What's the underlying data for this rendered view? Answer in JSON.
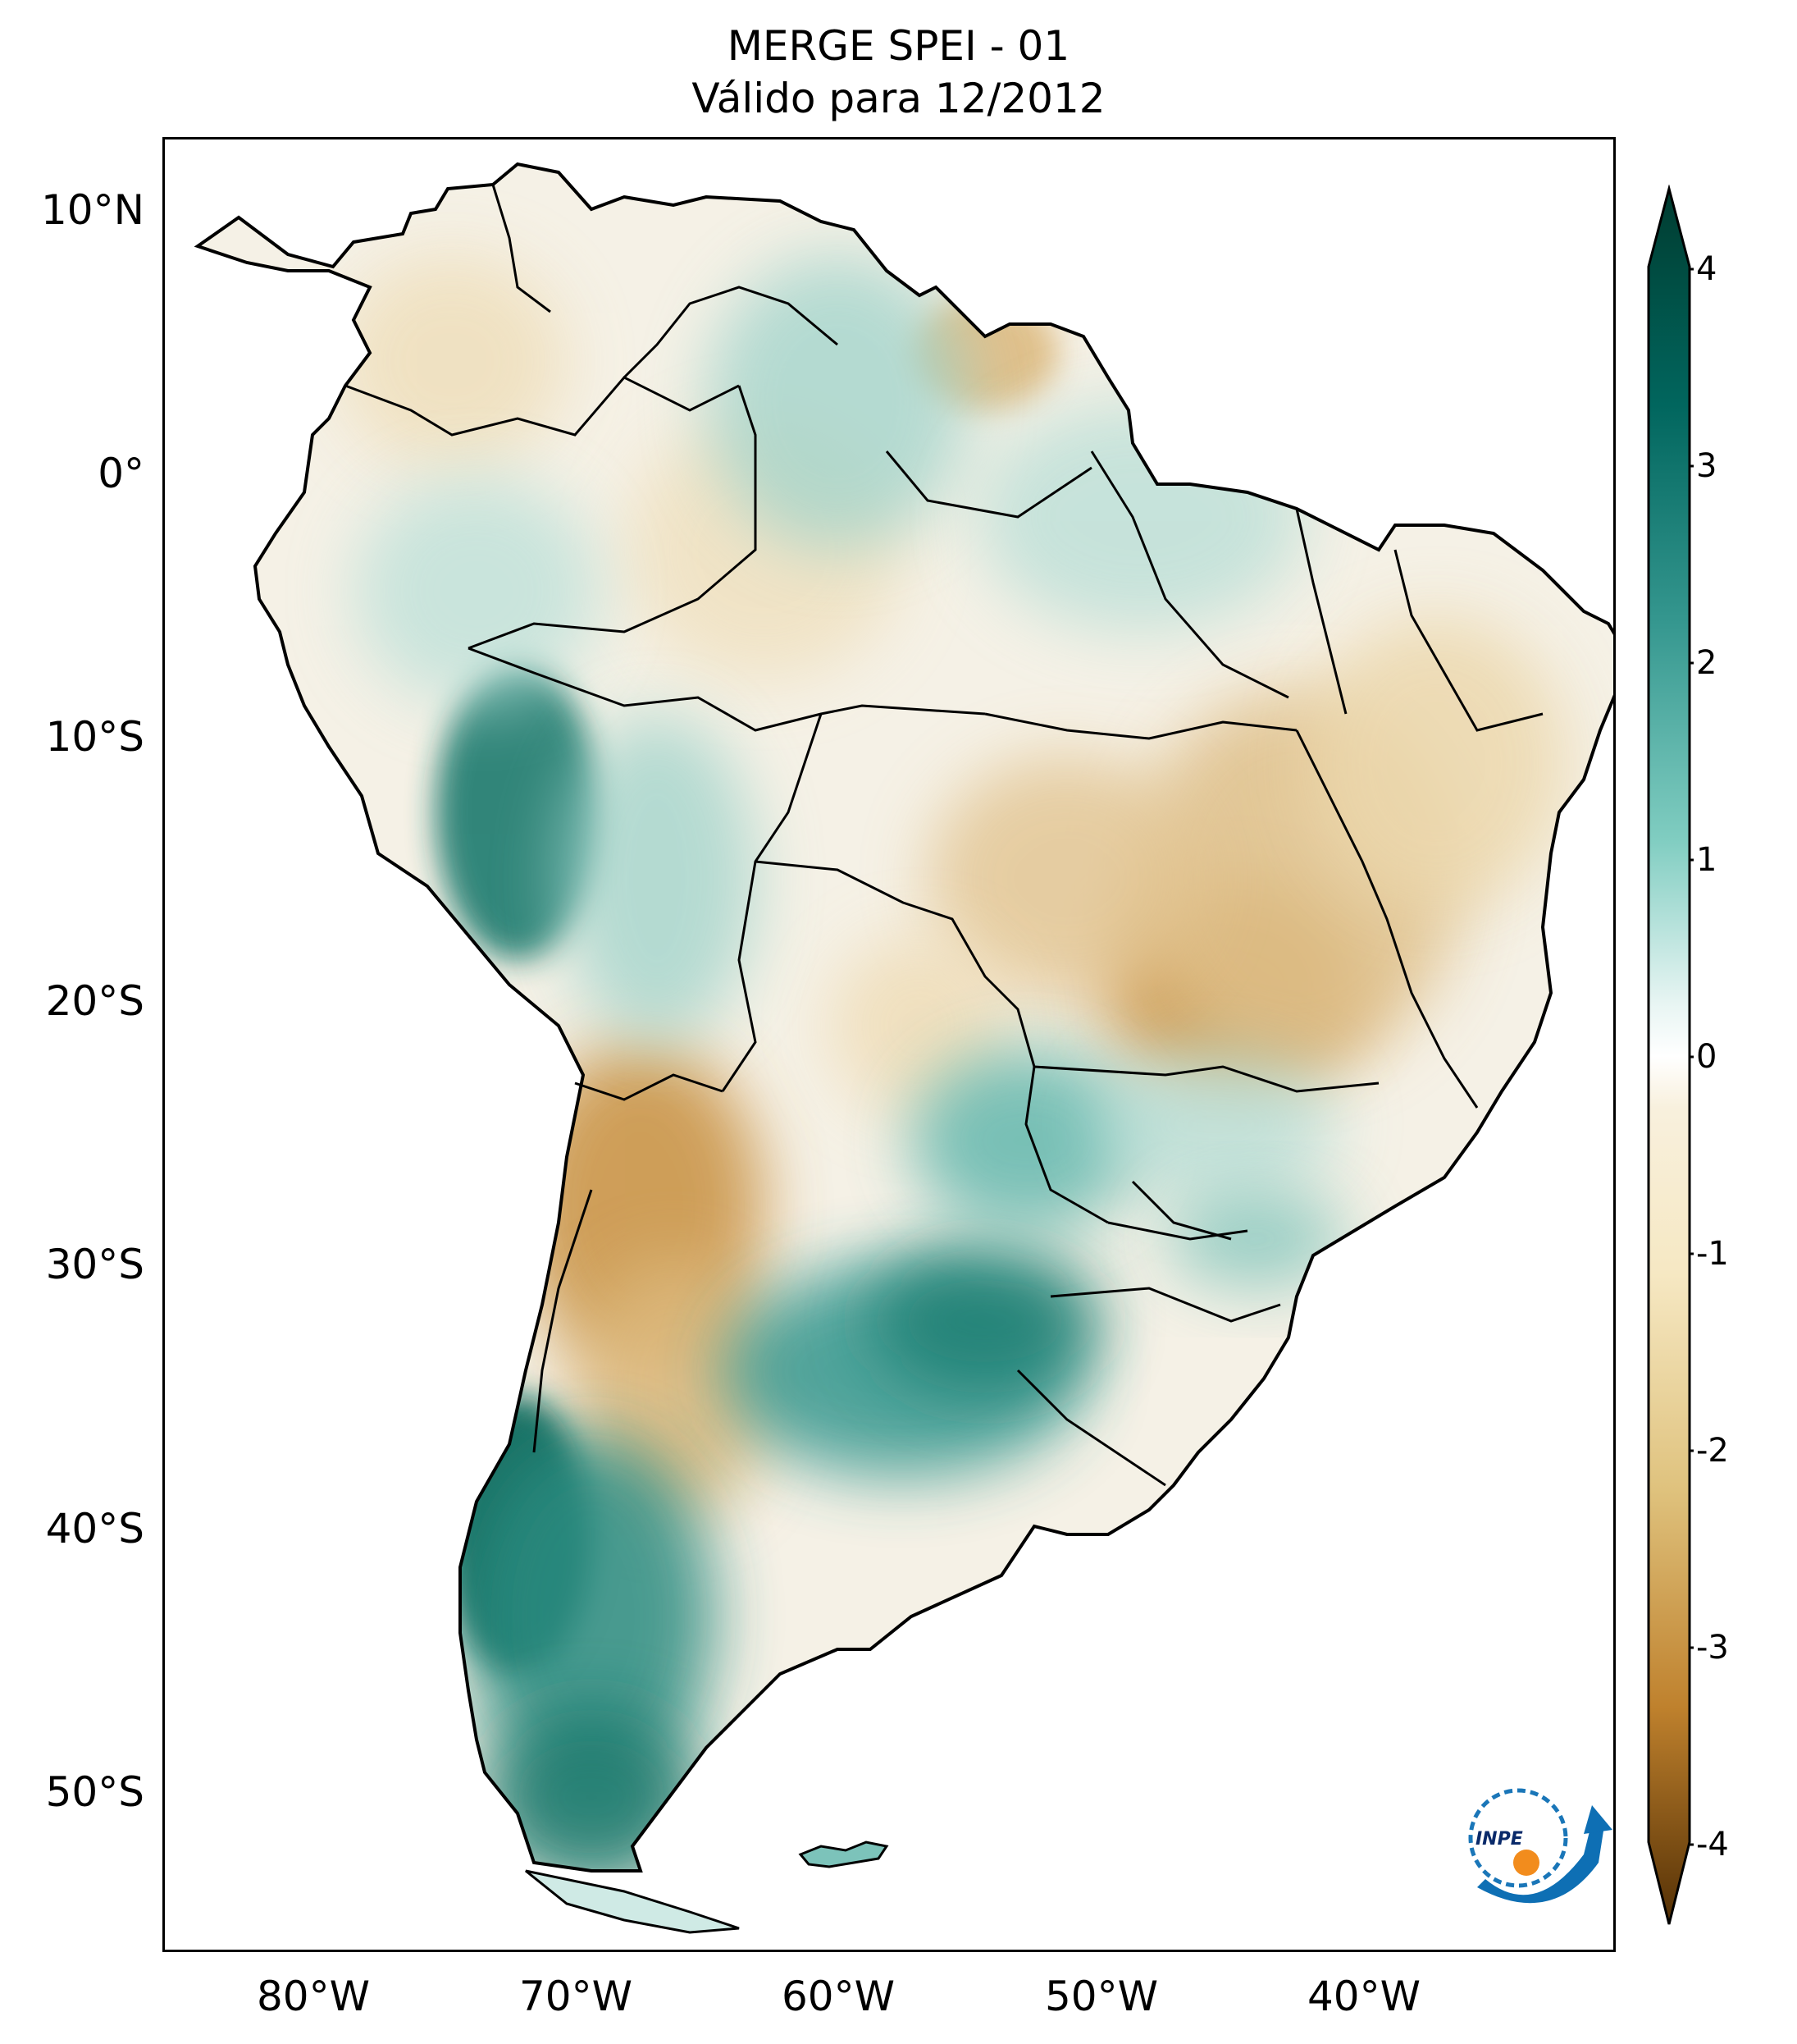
{
  "title": {
    "line1": "MERGE   SPEI - 01",
    "line2": "Válido para 12/2012"
  },
  "latitude_labels": [
    "10°N",
    "0°",
    "10°S",
    "20°S",
    "30°S",
    "40°S",
    "50°S"
  ],
  "longitude_labels": [
    "80°W",
    "70°W",
    "60°W",
    "50°W",
    "40°W"
  ],
  "colorbar": {
    "ticks": [
      "4",
      "3",
      "2",
      "1",
      "0",
      "-1",
      "-2",
      "-3",
      "-4"
    ],
    "range": [
      -4,
      4
    ],
    "colors": {
      "strong_wet": "#003c30",
      "wet": "#35978f",
      "light_wet": "#c7eae5",
      "neutral": "#f5f5f5",
      "light_dry": "#f6e8c3",
      "dry": "#bf812d",
      "strong_dry": "#543005"
    }
  },
  "logo": {
    "text": "INPE"
  }
}
